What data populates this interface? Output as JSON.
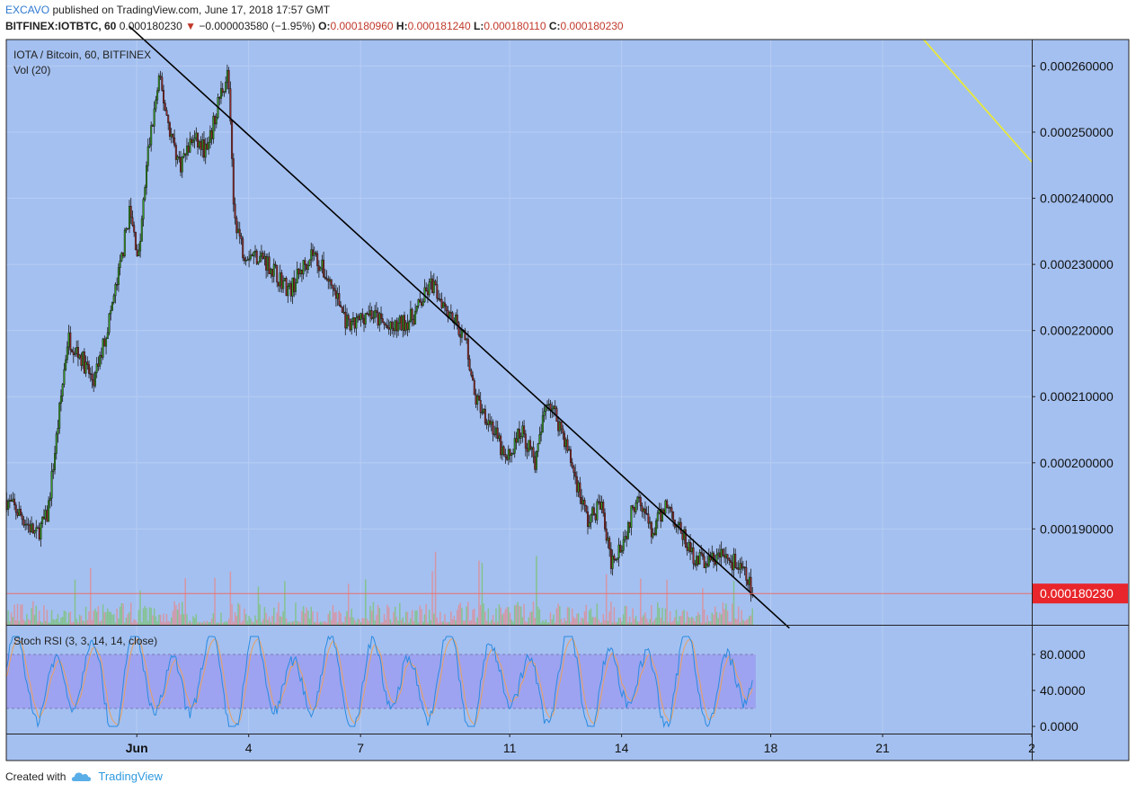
{
  "header": {
    "author": "EXCAVO",
    "published_text": "published on TradingView.com, June 17, 2018 17:57 GMT",
    "symbol": "BITFINEX:IOTBTC, 60",
    "last": "0.000180230",
    "change": "−0.000003580 (−1.95%)",
    "o_label": "O:",
    "o": "0.000180960",
    "h_label": "H:",
    "h": "0.000181240",
    "l_label": "L:",
    "l": "0.000180110",
    "c_label": "C:",
    "c": "0.000180230"
  },
  "main_legend": {
    "title": "IOTA / Bitcoin, 60, BITFINEX",
    "volume": "Vol (20)"
  },
  "rsi_legend": {
    "title": "Stoch RSI (3, 3, 14, 14, close)"
  },
  "footer": {
    "created_with": "Created with",
    "brand": "TradingView"
  },
  "colors": {
    "pane_bg": "#a4c0f0",
    "up": "#33a51f",
    "down": "#9c2a2a",
    "volume_up": "#7fc27f",
    "volume_down": "#dd8f9a",
    "trendline": "#000000",
    "yellow_line": "#e8e83a",
    "price_label_bg": "#e8262b",
    "rsi_band": "#9b9bf0",
    "k_line": "#2a8be0",
    "d_line": "#e8a060"
  },
  "chart_data": [
    {
      "type": "candlestick",
      "x_axis": {
        "tick_labels": [
          "Jun",
          "4",
          "7",
          "11",
          "14",
          "18",
          "21",
          "2"
        ],
        "tick_days": [
          1,
          4,
          7,
          11,
          14,
          18,
          21,
          25
        ],
        "range_days": [
          -2.5,
          25
        ]
      },
      "y_axis": {
        "tick_labels": [
          "0.000260000",
          "0.000250000",
          "0.000240000",
          "0.000230000",
          "0.000220000",
          "0.000210000",
          "0.000200000",
          "0.000190000"
        ],
        "range": [
          0.0001755,
          0.000264
        ]
      },
      "last_price": 0.00018023,
      "last_price_label": "0.000180230",
      "price_path": [
        {
          "day": -2.6,
          "price": 0.000195
        },
        {
          "day": -2.1,
          "price": 0.000192
        },
        {
          "day": -1.7,
          "price": 0.000189
        },
        {
          "day": -1.4,
          "price": 0.000192
        },
        {
          "day": -1.15,
          "price": 0.000204
        },
        {
          "day": -0.85,
          "price": 0.000219
        },
        {
          "day": -0.5,
          "price": 0.000216
        },
        {
          "day": -0.15,
          "price": 0.000212
        },
        {
          "day": 0.15,
          "price": 0.000219
        },
        {
          "day": 0.5,
          "price": 0.000228
        },
        {
          "day": 0.8,
          "price": 0.000238
        },
        {
          "day": 1.05,
          "price": 0.000231
        },
        {
          "day": 1.3,
          "price": 0.000247
        },
        {
          "day": 1.6,
          "price": 0.000258
        },
        {
          "day": 1.9,
          "price": 0.00025
        },
        {
          "day": 2.15,
          "price": 0.000245
        },
        {
          "day": 2.5,
          "price": 0.000249
        },
        {
          "day": 2.9,
          "price": 0.000247
        },
        {
          "day": 3.2,
          "price": 0.000255
        },
        {
          "day": 3.45,
          "price": 0.000259
        },
        {
          "day": 3.6,
          "price": 0.000238
        },
        {
          "day": 3.85,
          "price": 0.000232
        },
        {
          "day": 4.4,
          "price": 0.000231
        },
        {
          "day": 5.1,
          "price": 0.000226
        },
        {
          "day": 5.7,
          "price": 0.000232
        },
        {
          "day": 6.3,
          "price": 0.000226
        },
        {
          "day": 6.7,
          "price": 0.00022
        },
        {
          "day": 7.2,
          "price": 0.000223
        },
        {
          "day": 7.8,
          "price": 0.00022
        },
        {
          "day": 8.4,
          "price": 0.000222
        },
        {
          "day": 8.9,
          "price": 0.000227
        },
        {
          "day": 9.5,
          "price": 0.000222
        },
        {
          "day": 9.85,
          "price": 0.000218
        },
        {
          "day": 10.05,
          "price": 0.00021
        },
        {
          "day": 10.5,
          "price": 0.000206
        },
        {
          "day": 10.9,
          "price": 0.0002
        },
        {
          "day": 11.3,
          "price": 0.000205
        },
        {
          "day": 11.7,
          "price": 0.0002
        },
        {
          "day": 12.0,
          "price": 0.00021
        },
        {
          "day": 12.4,
          "price": 0.000205
        },
        {
          "day": 12.8,
          "price": 0.000197
        },
        {
          "day": 13.1,
          "price": 0.000191
        },
        {
          "day": 13.45,
          "price": 0.000194
        },
        {
          "day": 13.7,
          "price": 0.000185
        },
        {
          "day": 14.1,
          "price": 0.000189
        },
        {
          "day": 14.45,
          "price": 0.000196
        },
        {
          "day": 14.8,
          "price": 0.000189
        },
        {
          "day": 15.2,
          "price": 0.000194
        },
        {
          "day": 15.55,
          "price": 0.00019
        },
        {
          "day": 15.9,
          "price": 0.000186
        },
        {
          "day": 16.3,
          "price": 0.000185
        },
        {
          "day": 16.7,
          "price": 0.000186
        },
        {
          "day": 17.0,
          "price": 0.000185
        },
        {
          "day": 17.3,
          "price": 0.000183
        },
        {
          "day": 17.55,
          "price": 0.00018023
        }
      ],
      "trendline": {
        "from": {
          "day": 0.8,
          "price": 0.000266
        },
        "to": {
          "day": 18.5,
          "price": 0.000175
        }
      },
      "yellow_line": {
        "from": {
          "day": 22.1,
          "price": 0.000264
        },
        "to": {
          "day": 25.1,
          "price": 0.0002455
        }
      }
    },
    {
      "type": "line",
      "name": "Stoch RSI (3, 3, 14, 14, close)",
      "y_axis": {
        "tick_labels": [
          "80.0000",
          "40.0000",
          "0.0000"
        ],
        "range": [
          -8,
          112
        ]
      },
      "bands": [
        20,
        80
      ],
      "x_range_days": [
        -2.5,
        17.6
      ]
    }
  ]
}
